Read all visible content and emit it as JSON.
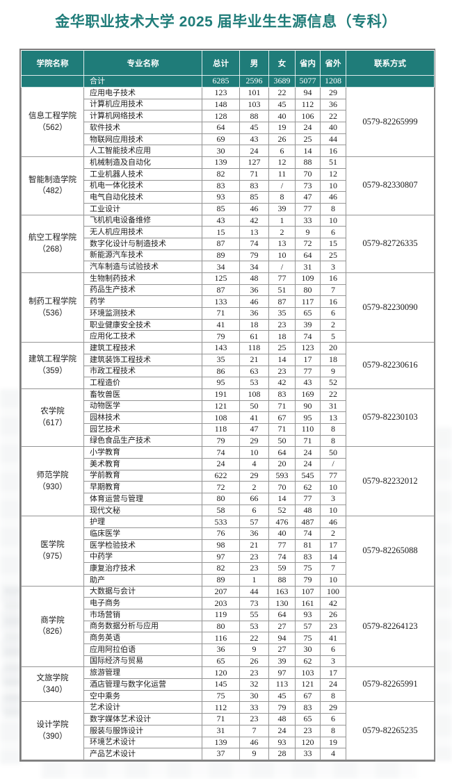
{
  "title": "金华职业技术大学 2025 届毕业生生源信息（专科）",
  "colors": {
    "accent_teal": "#1f7c79",
    "grid_gray": "#949494",
    "header_text": "#ffffff"
  },
  "table": {
    "headers": [
      "学院名称",
      "专业名称",
      "总计",
      "男",
      "女",
      "省内",
      "省外",
      "联系方式"
    ],
    "total_row": {
      "label": "合计",
      "values": [
        "6285",
        "2596",
        "3689",
        "5077",
        "1208"
      ]
    },
    "sections": [
      {
        "college": "信息工程学院",
        "count": "（562）",
        "contact": "0579-82265999",
        "majors": [
          {
            "name": "应用电子技术",
            "values": [
              "123",
              "101",
              "22",
              "94",
              "29"
            ]
          },
          {
            "name": "计算机应用技术",
            "values": [
              "148",
              "103",
              "45",
              "112",
              "36"
            ]
          },
          {
            "name": "计算机网络技术",
            "values": [
              "128",
              "88",
              "40",
              "106",
              "22"
            ]
          },
          {
            "name": "软件技术",
            "values": [
              "64",
              "45",
              "19",
              "24",
              "40"
            ]
          },
          {
            "name": "物联网应用技术",
            "values": [
              "69",
              "43",
              "26",
              "25",
              "44"
            ]
          },
          {
            "name": "人工智能技术应用",
            "values": [
              "30",
              "24",
              "6",
              "14",
              "16"
            ]
          }
        ]
      },
      {
        "college": "智能制造学院",
        "count": "（482）",
        "contact": "0579-82330807",
        "majors": [
          {
            "name": "机械制造及自动化",
            "values": [
              "139",
              "127",
              "12",
              "88",
              "51"
            ]
          },
          {
            "name": "工业机器人技术",
            "values": [
              "82",
              "71",
              "11",
              "70",
              "12"
            ]
          },
          {
            "name": "机电一体化技术",
            "values": [
              "83",
              "83",
              "/",
              "73",
              "10"
            ]
          },
          {
            "name": "电气自动化技术",
            "values": [
              "93",
              "85",
              "8",
              "47",
              "46"
            ]
          },
          {
            "name": "工业设计",
            "values": [
              "85",
              "46",
              "39",
              "77",
              "8"
            ]
          }
        ]
      },
      {
        "college": "航空工程学院",
        "count": "（268）",
        "contact": "0579-82726335",
        "majors": [
          {
            "name": "飞机机电设备维修",
            "values": [
              "43",
              "42",
              "1",
              "33",
              "10"
            ]
          },
          {
            "name": "无人机应用技术",
            "values": [
              "15",
              "13",
              "2",
              "9",
              "6"
            ]
          },
          {
            "name": "数字化设计与制造技术",
            "values": [
              "87",
              "74",
              "13",
              "72",
              "15"
            ]
          },
          {
            "name": "新能源汽车技术",
            "values": [
              "89",
              "79",
              "10",
              "64",
              "25"
            ]
          },
          {
            "name": "汽车制造与试验技术",
            "values": [
              "34",
              "34",
              "/",
              "31",
              "3"
            ]
          }
        ]
      },
      {
        "college": "制药工程学院",
        "count": "（536）",
        "contact": "0579-82230090",
        "majors": [
          {
            "name": "生物制药技术",
            "values": [
              "125",
              "48",
              "77",
              "109",
              "16"
            ]
          },
          {
            "name": "药品生产技术",
            "values": [
              "87",
              "36",
              "51",
              "80",
              "7"
            ]
          },
          {
            "name": "药学",
            "values": [
              "133",
              "46",
              "87",
              "117",
              "16"
            ]
          },
          {
            "name": "环境监测技术",
            "values": [
              "71",
              "36",
              "35",
              "65",
              "6"
            ]
          },
          {
            "name": "职业健康安全技术",
            "values": [
              "41",
              "18",
              "23",
              "39",
              "2"
            ]
          },
          {
            "name": "应用化工技术",
            "values": [
              "79",
              "61",
              "18",
              "74",
              "5"
            ]
          }
        ]
      },
      {
        "college": "建筑工程学院",
        "count": "（359）",
        "contact": "0579-82230616",
        "majors": [
          {
            "name": "建筑工程技术",
            "values": [
              "143",
              "118",
              "25",
              "123",
              "20"
            ]
          },
          {
            "name": "建筑装饰工程技术",
            "values": [
              "35",
              "21",
              "14",
              "17",
              "18"
            ]
          },
          {
            "name": "市政工程技术",
            "values": [
              "86",
              "63",
              "23",
              "77",
              "9"
            ]
          },
          {
            "name": "工程造价",
            "values": [
              "95",
              "53",
              "42",
              "43",
              "52"
            ]
          }
        ]
      },
      {
        "college": "农学院",
        "count": "（617）",
        "contact": "0579-82230103",
        "majors": [
          {
            "name": "畜牧兽医",
            "values": [
              "191",
              "108",
              "83",
              "169",
              "22"
            ]
          },
          {
            "name": "动物医学",
            "values": [
              "121",
              "50",
              "71",
              "90",
              "31"
            ]
          },
          {
            "name": "园林技术",
            "values": [
              "108",
              "41",
              "67",
              "95",
              "13"
            ]
          },
          {
            "name": "园艺技术",
            "values": [
              "118",
              "47",
              "71",
              "110",
              "8"
            ]
          },
          {
            "name": "绿色食品生产技术",
            "values": [
              "79",
              "29",
              "50",
              "71",
              "8"
            ]
          }
        ]
      },
      {
        "college": "师范学院",
        "count": "（930）",
        "contact": "0579-82232012",
        "majors": [
          {
            "name": "小学教育",
            "values": [
              "74",
              "10",
              "64",
              "24",
              "50"
            ]
          },
          {
            "name": "美术教育",
            "values": [
              "24",
              "4",
              "20",
              "24",
              "/"
            ]
          },
          {
            "name": "学前教育",
            "values": [
              "622",
              "29",
              "593",
              "545",
              "77"
            ]
          },
          {
            "name": "早期教育",
            "values": [
              "72",
              "2",
              "70",
              "62",
              "10"
            ]
          },
          {
            "name": "体育运营与管理",
            "values": [
              "80",
              "66",
              "14",
              "77",
              "3"
            ]
          },
          {
            "name": "现代文秘",
            "values": [
              "58",
              "6",
              "52",
              "48",
              "10"
            ]
          }
        ]
      },
      {
        "college": "医学院",
        "count": "（975）",
        "contact": "0579-82265088",
        "majors": [
          {
            "name": "护理",
            "values": [
              "533",
              "57",
              "476",
              "487",
              "46"
            ]
          },
          {
            "name": "临床医学",
            "values": [
              "76",
              "36",
              "40",
              "74",
              "2"
            ]
          },
          {
            "name": "医学检验技术",
            "values": [
              "98",
              "21",
              "77",
              "81",
              "17"
            ]
          },
          {
            "name": "中药学",
            "values": [
              "97",
              "23",
              "74",
              "83",
              "14"
            ]
          },
          {
            "name": "康复治疗技术",
            "values": [
              "82",
              "23",
              "59",
              "75",
              "7"
            ]
          },
          {
            "name": "助产",
            "values": [
              "89",
              "1",
              "88",
              "79",
              "10"
            ]
          }
        ]
      },
      {
        "college": "商学院",
        "count": "（826）",
        "contact": "0579-82264123",
        "majors": [
          {
            "name": "大数据与会计",
            "values": [
              "207",
              "44",
              "163",
              "107",
              "100"
            ]
          },
          {
            "name": "电子商务",
            "values": [
              "203",
              "73",
              "130",
              "161",
              "42"
            ]
          },
          {
            "name": "市场营销",
            "values": [
              "119",
              "55",
              "64",
              "93",
              "26"
            ]
          },
          {
            "name": "商务数据分析与应用",
            "values": [
              "80",
              "53",
              "27",
              "57",
              "23"
            ]
          },
          {
            "name": "商务英语",
            "values": [
              "116",
              "22",
              "94",
              "75",
              "41"
            ]
          },
          {
            "name": "应用阿拉伯语",
            "values": [
              "36",
              "9",
              "27",
              "30",
              "6"
            ]
          },
          {
            "name": "国际经济与贸易",
            "values": [
              "65",
              "26",
              "39",
              "62",
              "3"
            ]
          }
        ]
      },
      {
        "college": "文旅学院",
        "count": "（340）",
        "contact": "0579-82265991",
        "majors": [
          {
            "name": "旅游管理",
            "values": [
              "120",
              "23",
              "97",
              "103",
              "17"
            ]
          },
          {
            "name": "酒店管理与数字化运营",
            "values": [
              "145",
              "32",
              "113",
              "121",
              "24"
            ]
          },
          {
            "name": "空中乘务",
            "values": [
              "75",
              "30",
              "45",
              "67",
              "8"
            ]
          }
        ]
      },
      {
        "college": "设计学院",
        "count": "（390）",
        "contact": "0579-82265235",
        "majors": [
          {
            "name": "艺术设计",
            "values": [
              "112",
              "33",
              "79",
              "83",
              "29"
            ]
          },
          {
            "name": "数字媒体艺术设计",
            "values": [
              "71",
              "23",
              "48",
              "65",
              "6"
            ]
          },
          {
            "name": "服装与服饰设计",
            "values": [
              "31",
              "7",
              "24",
              "23",
              "8"
            ]
          },
          {
            "name": "环境艺术设计",
            "values": [
              "139",
              "46",
              "93",
              "120",
              "19"
            ]
          },
          {
            "name": "产品艺术设计",
            "values": [
              "37",
              "9",
              "28",
              "33",
              "4"
            ]
          }
        ]
      }
    ]
  }
}
